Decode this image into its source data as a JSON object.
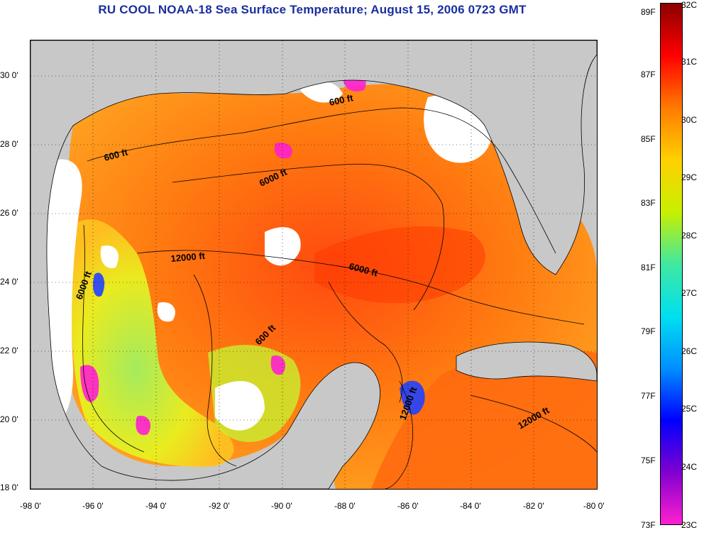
{
  "title": "RU COOL  NOAA-18  Sea Surface Temperature;  August 15, 2006 0723 GMT",
  "map": {
    "lon_ticks": [
      "-98 0'",
      "-96 0'",
      "-94 0'",
      "-92 0'",
      "-90 0'",
      "-88 0'",
      "-86 0'",
      "-84 0'",
      "-82 0'",
      "-80 0'"
    ],
    "lat_ticks": [
      "30 0'",
      "28 0'",
      "26 0'",
      "24 0'",
      "22 0'",
      "20 0'",
      "18 0'"
    ],
    "lon_range": [
      -98,
      -80
    ],
    "lat_range": [
      18,
      31
    ],
    "grid": "dotted",
    "contour_labels": [
      "600 ft",
      "600 ft",
      "6000 ft",
      "12000 ft",
      "6000 ft",
      "6000 ft",
      "600 ft",
      "12000 ft",
      "12000 ft"
    ]
  },
  "colorbar": {
    "celsius_labels": [
      "32C",
      "31C",
      "30C",
      "29C",
      "28C",
      "27C",
      "26C",
      "25C",
      "24C",
      "23C"
    ],
    "fahrenheit_labels": [
      "89F",
      "87F",
      "85F",
      "83F",
      "81F",
      "79F",
      "77F",
      "75F",
      "73F"
    ],
    "range_c": [
      23,
      32
    ],
    "colors": [
      "#8b0000",
      "#ff0000",
      "#ff7a00",
      "#ffd000",
      "#c8f000",
      "#40e8a0",
      "#00e0f0",
      "#0090ff",
      "#0000ff",
      "#8000d0",
      "#ff20d0"
    ]
  }
}
